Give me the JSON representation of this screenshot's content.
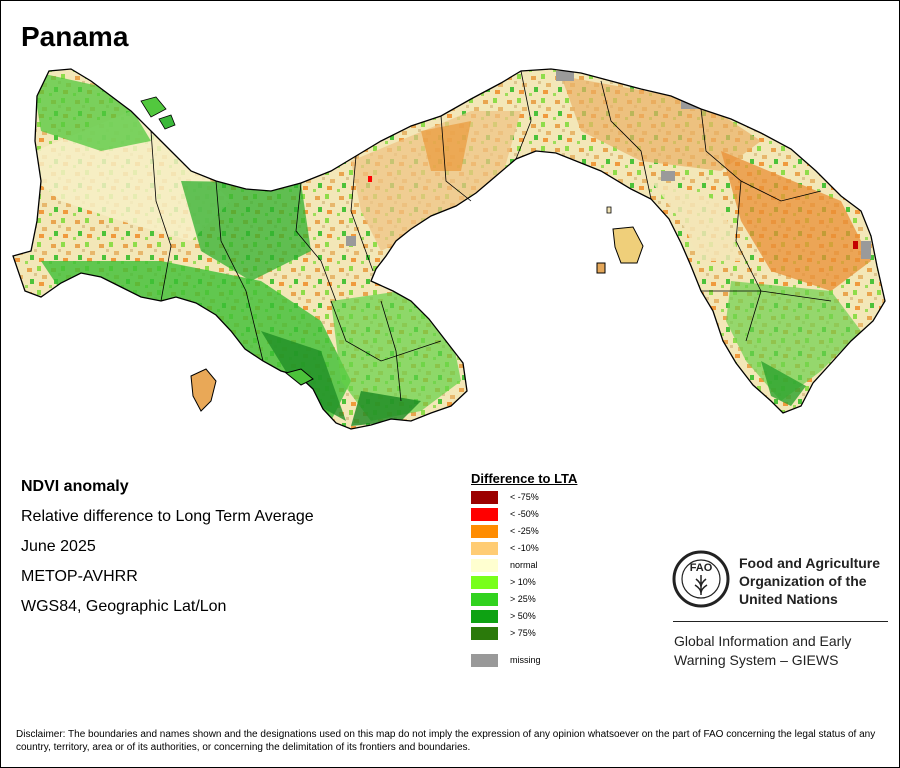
{
  "map": {
    "title": "Panama",
    "info_lines": [
      "NDVI anomaly",
      "Relative difference to Long Term Average",
      "June 2025",
      "METOP-AVHRR",
      "WGS84, Geographic Lat/Lon"
    ],
    "colors": {
      "sea": "#ffffff",
      "border": "#000000",
      "low_high_vegetation": [
        "#f6edc0",
        "#edd49c",
        "#e4a75a",
        "#8fd94a",
        "#3bb83a",
        "#1f8f26"
      ]
    }
  },
  "legend": {
    "title": "Difference to LTA",
    "items": [
      {
        "label": "< -75%",
        "color": "#9c0000"
      },
      {
        "label": "< -50%",
        "color": "#ff0000"
      },
      {
        "label": "< -25%",
        "color": "#ff8c00"
      },
      {
        "label": "< -10%",
        "color": "#ffcc73"
      },
      {
        "label": "normal",
        "color": "#ffffd0"
      },
      {
        "label": "> 10%",
        "color": "#78ff1a"
      },
      {
        "label": "> 25%",
        "color": "#31d21f"
      },
      {
        "label": "> 50%",
        "color": "#0ea213"
      },
      {
        "label": "> 75%",
        "color": "#2b7a0b"
      },
      {
        "label": "missing",
        "color": "#999999"
      }
    ]
  },
  "org": {
    "logo_text": "FAO",
    "logo_motto": "FIAT PANIS",
    "name_lines": [
      "Food and Agriculture",
      "Organization of the",
      "United Nations"
    ],
    "giews_lines": [
      "Global Information and Early",
      "Warning System – GIEWS"
    ]
  },
  "disclaimer": "Disclaimer: The boundaries and names shown and the designations used on this map do not imply the expression of any opinion whatsoever on the part of FAO concerning the legal status of any country, territory, area or of its authorities, or concerning the delimitation of its frontiers and boundaries."
}
